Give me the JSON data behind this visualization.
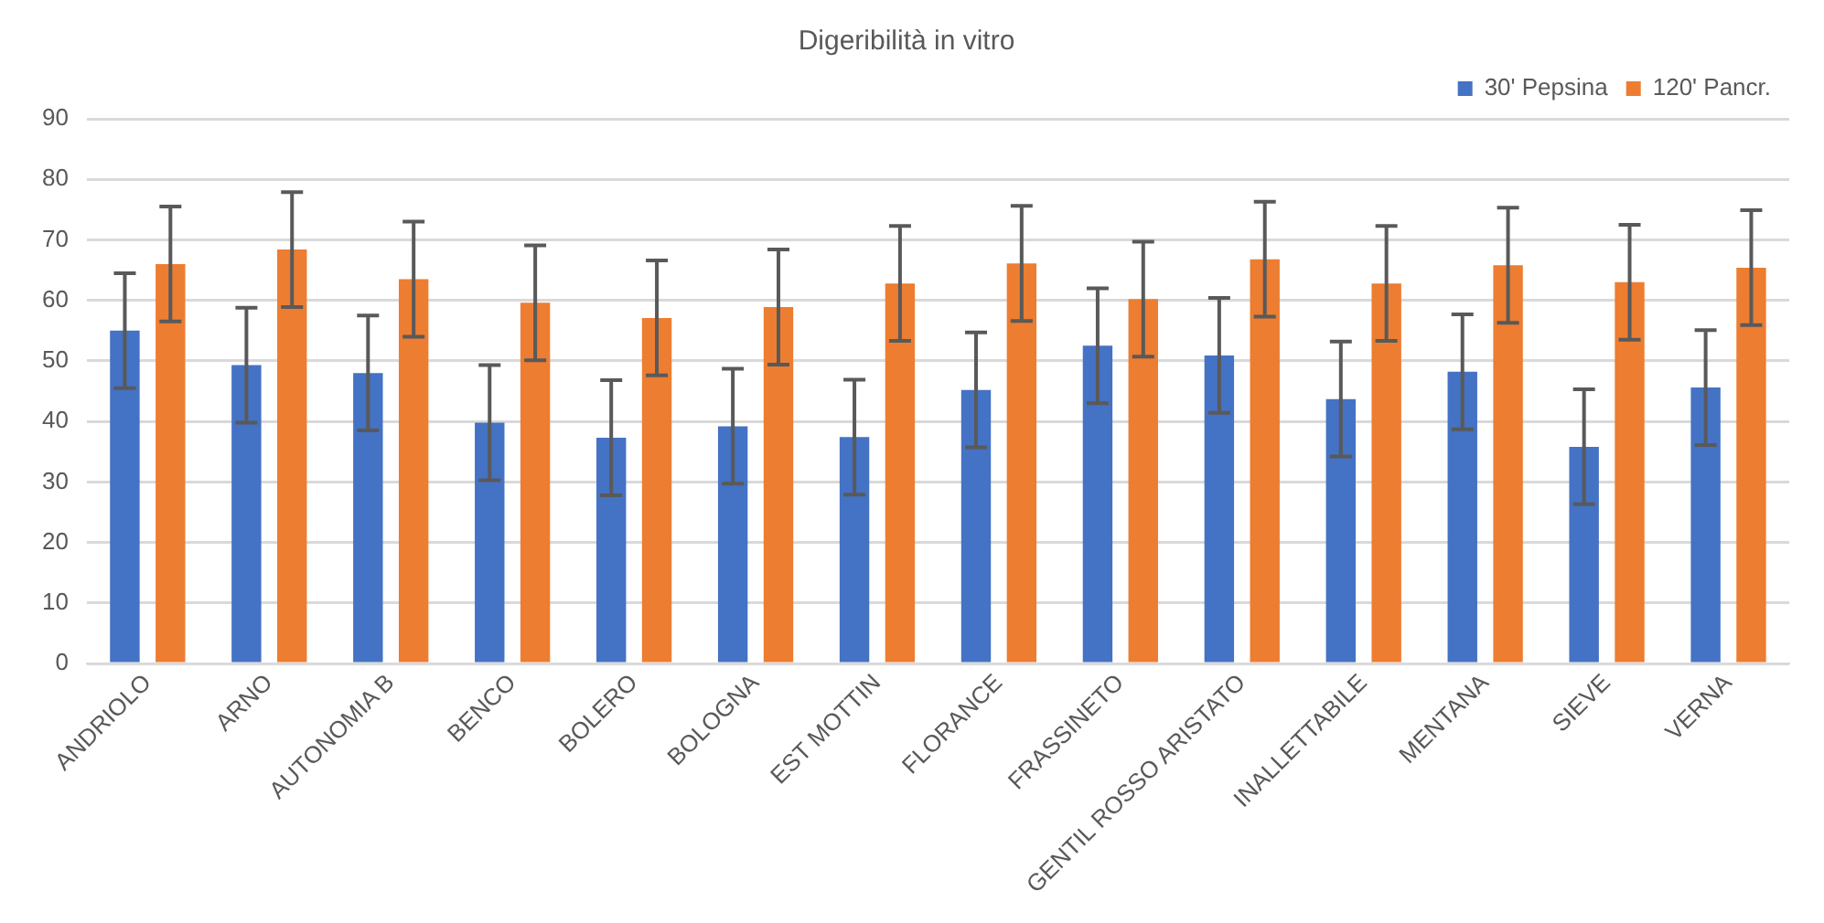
{
  "chart_data": {
    "type": "bar",
    "title": "Digeribilità in vitro",
    "categories": [
      "ANDRIOLO",
      "ARNO",
      "AUTONOMIA B",
      "BENCO",
      "BOLERO",
      "BOLOGNA",
      "EST MOTTIN",
      "FLORANCE",
      "FRASSINETO",
      "GENTIL ROSSO ARISTATO",
      "INALLETTABILE",
      "MENTANA",
      "SIEVE",
      "VERNA"
    ],
    "series": [
      {
        "name": "30' Pepsina",
        "color": "#4472c4",
        "values": [
          55,
          49.3,
          48,
          39.8,
          37.3,
          39.2,
          37.4,
          45.2,
          52.5,
          50.9,
          43.7,
          48.2,
          35.8,
          45.6
        ],
        "errors": [
          9.5,
          9.5,
          9.5,
          9.5,
          9.5,
          9.5,
          9.5,
          9.5,
          9.5,
          9.5,
          9.5,
          9.5,
          9.5,
          9.5
        ]
      },
      {
        "name": "120' Pancr.",
        "color": "#ed7d31",
        "values": [
          66,
          68.4,
          63.5,
          59.6,
          57.1,
          58.9,
          62.8,
          66.1,
          60.2,
          66.8,
          62.8,
          65.8,
          63,
          65.4
        ],
        "errors": [
          9.5,
          9.5,
          9.5,
          9.5,
          9.5,
          9.5,
          9.5,
          9.5,
          9.5,
          9.5,
          9.5,
          9.5,
          9.5,
          9.5
        ]
      }
    ],
    "ylim": [
      0,
      90
    ],
    "yticks": [
      0,
      10,
      20,
      30,
      40,
      50,
      60,
      70,
      80,
      90
    ],
    "grid": "y",
    "legend": "top right"
  }
}
